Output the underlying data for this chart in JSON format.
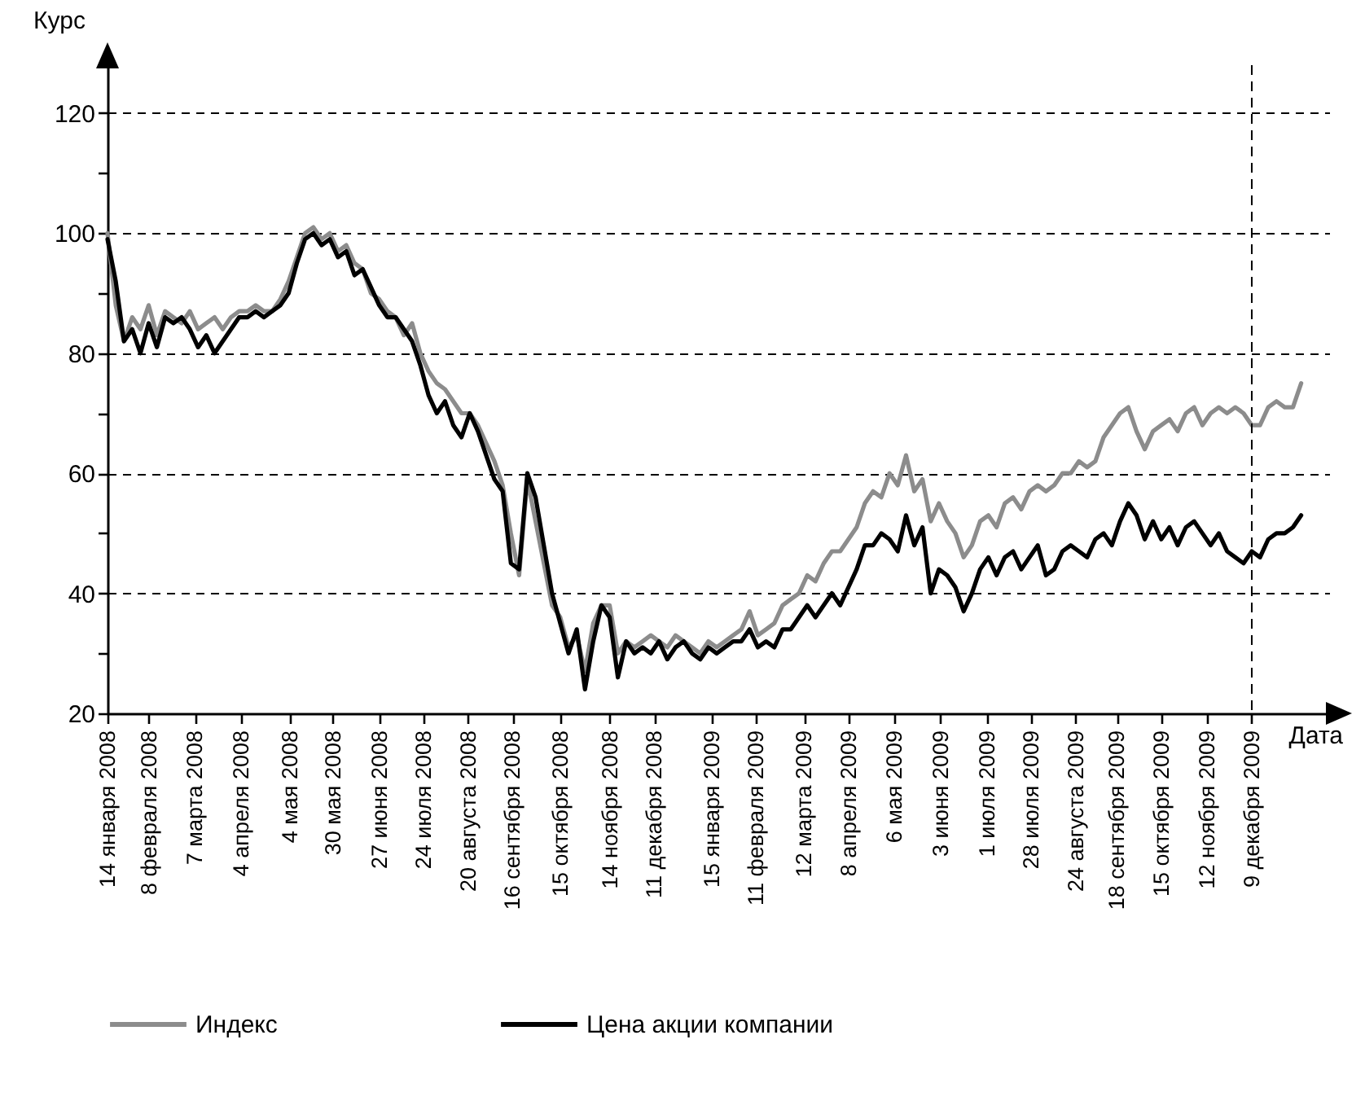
{
  "chart_data": {
    "type": "line",
    "xlabel": "Дата",
    "ylabel": "Курс",
    "x": [
      "2008-01-14",
      "2008-01-19",
      "2008-01-24",
      "2008-01-29",
      "2008-02-03",
      "2008-02-08",
      "2008-02-13",
      "2008-02-18",
      "2008-02-23",
      "2008-02-28",
      "2008-03-04",
      "2008-03-09",
      "2008-03-14",
      "2008-03-19",
      "2008-03-24",
      "2008-03-29",
      "2008-04-03",
      "2008-04-08",
      "2008-04-13",
      "2008-04-18",
      "2008-04-23",
      "2008-04-28",
      "2008-05-03",
      "2008-05-08",
      "2008-05-13",
      "2008-05-18",
      "2008-05-23",
      "2008-05-28",
      "2008-06-02",
      "2008-06-07",
      "2008-06-12",
      "2008-06-17",
      "2008-06-22",
      "2008-06-27",
      "2008-07-02",
      "2008-07-07",
      "2008-07-12",
      "2008-07-17",
      "2008-07-22",
      "2008-07-27",
      "2008-08-01",
      "2008-08-06",
      "2008-08-11",
      "2008-08-16",
      "2008-08-21",
      "2008-08-26",
      "2008-08-31",
      "2008-09-05",
      "2008-09-10",
      "2008-09-15",
      "2008-09-20",
      "2008-09-25",
      "2008-09-30",
      "2008-10-05",
      "2008-10-10",
      "2008-10-15",
      "2008-10-20",
      "2008-10-25",
      "2008-10-30",
      "2008-11-04",
      "2008-11-09",
      "2008-11-14",
      "2008-11-19",
      "2008-11-24",
      "2008-11-29",
      "2008-12-04",
      "2008-12-09",
      "2008-12-14",
      "2008-12-19",
      "2008-12-24",
      "2008-12-29",
      "2009-01-03",
      "2009-01-08",
      "2009-01-13",
      "2009-01-18",
      "2009-01-23",
      "2009-01-28",
      "2009-02-02",
      "2009-02-07",
      "2009-02-12",
      "2009-02-17",
      "2009-02-22",
      "2009-02-27",
      "2009-03-04",
      "2009-03-09",
      "2009-03-14",
      "2009-03-19",
      "2009-03-24",
      "2009-03-29",
      "2009-04-03",
      "2009-04-08",
      "2009-04-13",
      "2009-04-18",
      "2009-04-23",
      "2009-04-28",
      "2009-05-03",
      "2009-05-08",
      "2009-05-13",
      "2009-05-18",
      "2009-05-23",
      "2009-05-28",
      "2009-06-02",
      "2009-06-07",
      "2009-06-12",
      "2009-06-17",
      "2009-06-22",
      "2009-06-27",
      "2009-07-02",
      "2009-07-07",
      "2009-07-12",
      "2009-07-17",
      "2009-07-22",
      "2009-07-27",
      "2009-08-01",
      "2009-08-06",
      "2009-08-11",
      "2009-08-16",
      "2009-08-21",
      "2009-08-26",
      "2009-08-31",
      "2009-09-05",
      "2009-09-10",
      "2009-09-15",
      "2009-09-20",
      "2009-09-25",
      "2009-09-30",
      "2009-10-05",
      "2009-10-10",
      "2009-10-15",
      "2009-10-20",
      "2009-10-25",
      "2009-10-30",
      "2009-11-04",
      "2009-11-09",
      "2009-11-14",
      "2009-11-19",
      "2009-11-24",
      "2009-11-29",
      "2009-12-04",
      "2009-12-09",
      "2009-12-14",
      "2009-12-19",
      "2009-12-24",
      "2009-12-29",
      "2010-01-03",
      "2010-01-08"
    ],
    "series": [
      {
        "name": "Индекс",
        "color": "#8c8c8c",
        "values": [
          100,
          88,
          82,
          86,
          84,
          88,
          83,
          87,
          86,
          85,
          87,
          84,
          85,
          86,
          84,
          86,
          87,
          87,
          88,
          87,
          87,
          89,
          92,
          96,
          100,
          101,
          99,
          100,
          97,
          98,
          95,
          94,
          90,
          89,
          87,
          86,
          83,
          85,
          80,
          77,
          75,
          74,
          72,
          70,
          70,
          68,
          65,
          62,
          58,
          50,
          43,
          59,
          52,
          45,
          38,
          36,
          31,
          33,
          27,
          35,
          38,
          38,
          30,
          32,
          31,
          32,
          33,
          32,
          31,
          33,
          32,
          31,
          30,
          32,
          31,
          32,
          33,
          34,
          37,
          33,
          34,
          35,
          38,
          39,
          40,
          43,
          42,
          45,
          47,
          47,
          49,
          51,
          55,
          57,
          56,
          60,
          58,
          63,
          57,
          59,
          52,
          55,
          52,
          50,
          46,
          48,
          52,
          53,
          51,
          55,
          56,
          54,
          57,
          58,
          57,
          58,
          60,
          60,
          62,
          61,
          62,
          66,
          68,
          70,
          71,
          67,
          64,
          67,
          68,
          69,
          67,
          70,
          71,
          68,
          70,
          71,
          70,
          71,
          70,
          68,
          68,
          71,
          72,
          71,
          71,
          75
        ]
      },
      {
        "name": "Цена акции компании",
        "color": "#000000",
        "values": [
          99,
          92,
          82,
          84,
          80,
          85,
          81,
          86,
          85,
          86,
          84,
          81,
          83,
          80,
          82,
          84,
          86,
          86,
          87,
          86,
          87,
          88,
          90,
          95,
          99,
          100,
          98,
          99,
          96,
          97,
          93,
          94,
          91,
          88,
          86,
          86,
          84,
          82,
          78,
          73,
          70,
          72,
          68,
          66,
          70,
          67,
          63,
          59,
          57,
          45,
          44,
          60,
          56,
          48,
          40,
          35,
          30,
          34,
          24,
          32,
          38,
          36,
          26,
          32,
          30,
          31,
          30,
          32,
          29,
          31,
          32,
          30,
          29,
          31,
          30,
          31,
          32,
          32,
          34,
          31,
          32,
          31,
          34,
          34,
          36,
          38,
          36,
          38,
          40,
          38,
          41,
          44,
          48,
          48,
          50,
          49,
          47,
          53,
          48,
          51,
          40,
          44,
          43,
          41,
          37,
          40,
          44,
          46,
          43,
          46,
          47,
          44,
          46,
          48,
          43,
          44,
          47,
          48,
          47,
          46,
          49,
          50,
          48,
          52,
          55,
          53,
          49,
          52,
          49,
          51,
          48,
          51,
          52,
          50,
          48,
          50,
          47,
          46,
          45,
          47,
          46,
          49,
          50,
          50,
          51,
          53
        ]
      }
    ],
    "xlim": [
      "2008-01-14",
      "2010-01-25"
    ],
    "xticks": [
      {
        "value": "2008-01-14",
        "label": "14 января 2008"
      },
      {
        "value": "2008-02-08",
        "label": "8 февраля 2008"
      },
      {
        "value": "2008-03-07",
        "label": "7 марта 2008"
      },
      {
        "value": "2008-04-04",
        "label": "4 апреля 2008"
      },
      {
        "value": "2008-05-04",
        "label": "4 мая 2008"
      },
      {
        "value": "2008-05-30",
        "label": "30 мая 2008"
      },
      {
        "value": "2008-06-27",
        "label": "27 июня 2008"
      },
      {
        "value": "2008-07-24",
        "label": "24 июля 2008"
      },
      {
        "value": "2008-08-20",
        "label": "20 августа 2008"
      },
      {
        "value": "2008-09-16",
        "label": "16 сентября 2008"
      },
      {
        "value": "2008-10-15",
        "label": "15 октября 2008"
      },
      {
        "value": "2008-11-14",
        "label": "14 ноября 2008"
      },
      {
        "value": "2008-12-11",
        "label": "11 декабря 2008"
      },
      {
        "value": "2009-01-15",
        "label": "15 января 2009"
      },
      {
        "value": "2009-02-11",
        "label": "11 февраля 2009"
      },
      {
        "value": "2009-03-12",
        "label": "12 марта 2009"
      },
      {
        "value": "2009-04-08",
        "label": "8 апреля 2009"
      },
      {
        "value": "2009-05-06",
        "label": "6 мая 2009"
      },
      {
        "value": "2009-06-03",
        "label": "3 июня 2009"
      },
      {
        "value": "2009-07-01",
        "label": "1 июля 2009"
      },
      {
        "value": "2009-07-28",
        "label": "28 июля 2009"
      },
      {
        "value": "2009-08-24",
        "label": "24 августа 2009"
      },
      {
        "value": "2009-09-18",
        "label": "18 сентября 2009"
      },
      {
        "value": "2009-10-15",
        "label": "15 октября 2009"
      },
      {
        "value": "2009-11-12",
        "label": "12 ноября 2009"
      },
      {
        "value": "2009-12-09",
        "label": "9 декабря 2009"
      }
    ],
    "ylim": [
      20,
      128
    ],
    "yticks": [
      20,
      {
        "value": 30,
        "label": null
      },
      40,
      {
        "value": 50,
        "label": null
      },
      60,
      {
        "value": 70,
        "label": null
      },
      80,
      {
        "value": 90,
        "label": null
      },
      100,
      {
        "value": 110,
        "label": null
      },
      120
    ],
    "ref_lines": [
      {
        "axis": "x",
        "value": "2009-12-09",
        "line_style": "dashed",
        "color": "#000000"
      }
    ],
    "grid": "y",
    "legend": "bottom",
    "marker": "none",
    "line_style": "solid"
  }
}
